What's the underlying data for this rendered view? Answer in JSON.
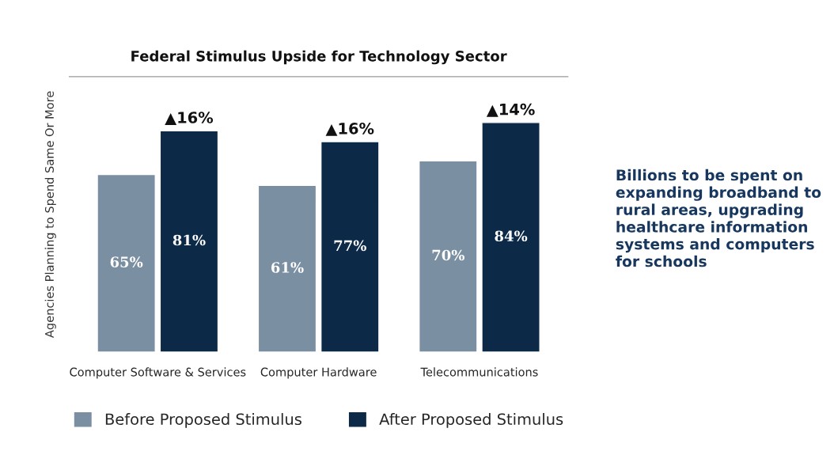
{
  "chart_data": {
    "type": "bar",
    "title": "Federal Stimulus Upside for Technology Sector",
    "ylabel": "Agencies Planning to Spend Same Or More",
    "categories": [
      "Computer Software & Services",
      "Computer Hardware",
      "Telecommunications"
    ],
    "series": [
      {
        "name": "Before Proposed Stimulus",
        "color": "#7b8fa3",
        "values": [
          65,
          61,
          70
        ],
        "value_labels": [
          "65%",
          "61%",
          "70%"
        ]
      },
      {
        "name": "After Proposed Stimulus",
        "color": "#0c2a48",
        "values": [
          81,
          77,
          84
        ],
        "value_labels": [
          "81%",
          "77%",
          "84%"
        ]
      }
    ],
    "legend": "bottom",
    "grid": false,
    "annotations": [
      {
        "text": "▲16%",
        "x": "Computer Software & Services",
        "y": 81
      },
      {
        "text": "▲16%",
        "x": "Computer Hardware",
        "y": 77
      },
      {
        "text": "▲14%",
        "x": "Telecommunications",
        "y": 84
      },
      "Billions to be spent on expanding broadband to rural areas, upgrading healthcare information systems and computers for schools"
    ]
  }
}
